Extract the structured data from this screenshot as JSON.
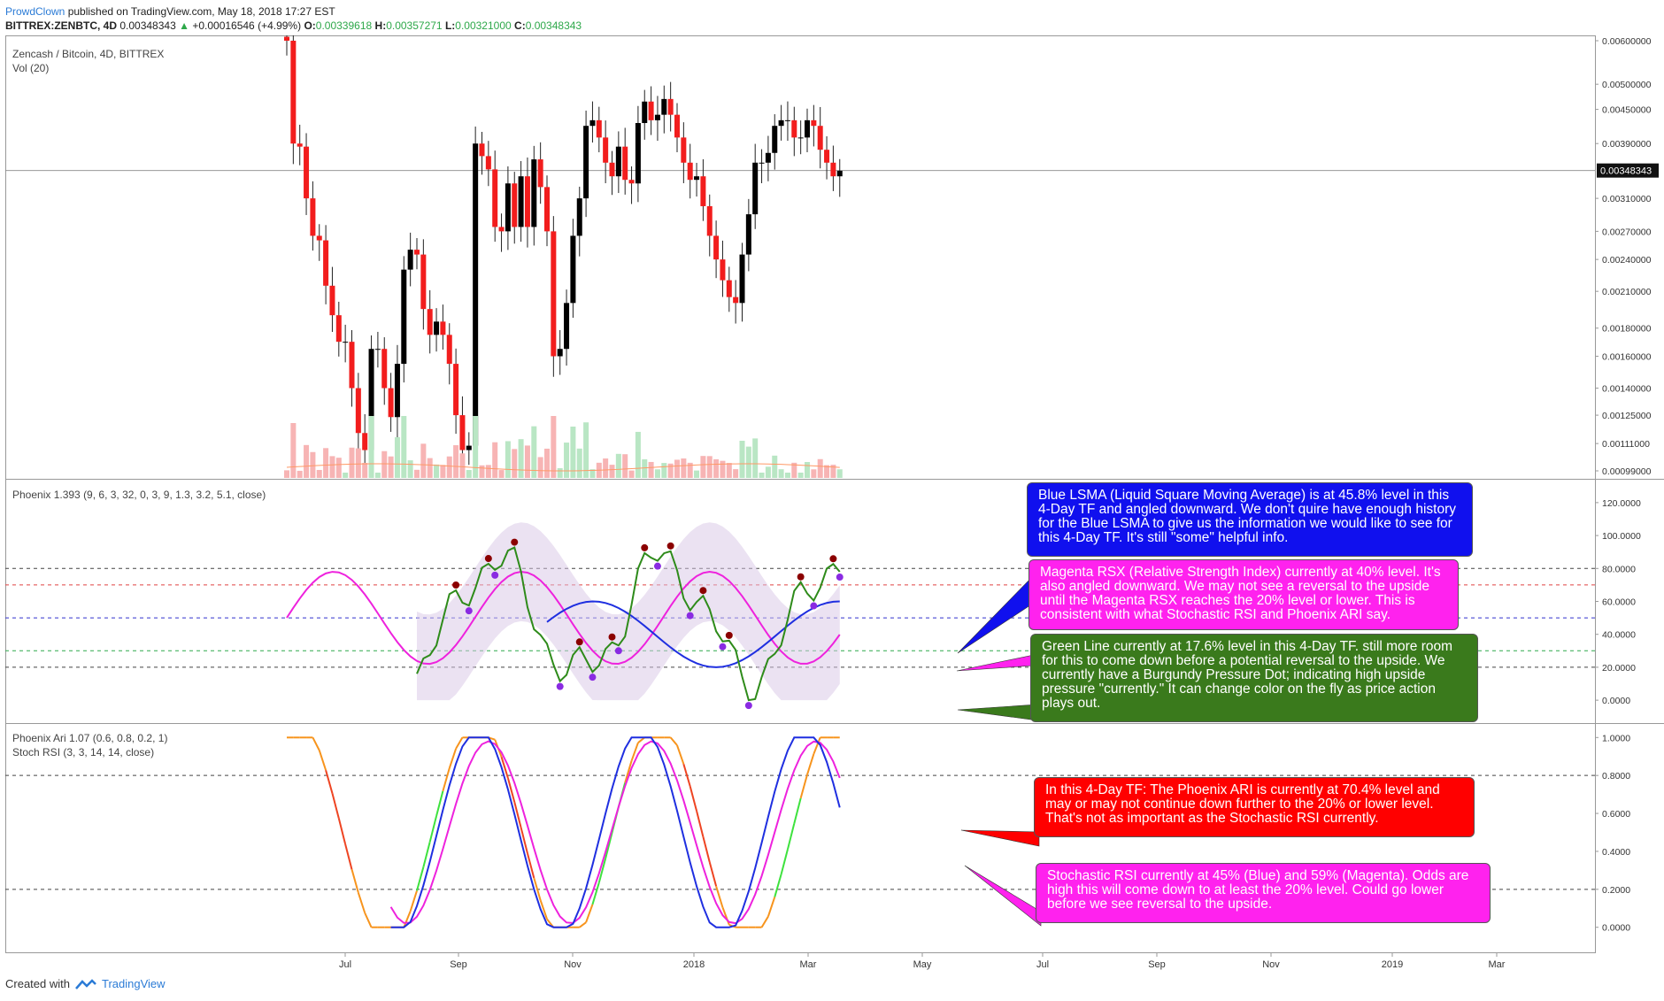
{
  "header": {
    "user": "ProwdClown",
    "published": "published on TradingView.com, May 18, 2018 17:27 EST",
    "symbol": "BITTREX:ZENBTC, 4D",
    "last": "0.00348343",
    "arrow": "▲",
    "change": "+0.00016546 (+4.99%)",
    "o_label": "O:",
    "o": "0.00339618",
    "h_label": "H:",
    "h": "0.00357271",
    "l_label": "L:",
    "l": "0.00321000",
    "c_label": "C:",
    "c": "0.00348343"
  },
  "panels": {
    "main_title": "Zencash / Bitcoin, 4D, BITTREX",
    "vol": "Vol (20)",
    "phoenix": "Phoenix 1.393 (9, 6, 3, 32, 0, 3, 9, 1.3, 3.2, 5.1, close)",
    "ari": "Phoenix Ari 1.07 (0.6, 0.8, 0.2, 1)",
    "stoch": "Stoch RSI (3, 3, 14, 14, close)"
  },
  "notes": {
    "blue": "Blue LSMA (Liquid Square Moving Average) is at 45.8% level in this 4-Day TF and angled downward.  We don't quire have enough history for the Blue LSMA to give us the information we would like to see for this 4-Day TF.  It's still \"some\" helpful info.",
    "magenta": "Magenta RSX (Relative Strength Index) currently at 40% level.  It's also angled downward.  We may not see a reversal to the upside until the Magenta RSX reaches the 20% level or lower.  This is consistent with what Stochastic RSI and Phoenix ARI say.",
    "green": "Green Line currently at 17.6% level in this 4-Day TF.  still more room for this to come down before a potential reversal to the upside.  We currently have a Burgundy Pressure Dot; indicating high upside pressure \"currently.\"  It can change color on the fly as price action plays out.",
    "red": "In this 4-Day TF:  The Phoenix ARI is currently at 70.4% level and may or may not continue down further to the 20% or lower level.  That's not as important as the Stochastic RSI currently.",
    "stoch": "Stochastic RSI currently at 45% (Blue) and 59% (Magenta).  Odds are high this will come down to at least the 20% level.  Could go lower before we see reversal to the upside."
  },
  "footer": {
    "created": "Created with",
    "brand": "TradingView"
  },
  "colors": {
    "up": "#000000",
    "down": "#f21d1d",
    "blue": "#1f2fe0",
    "magenta": "#ee22dd",
    "green": "#2e8b1a",
    "burgundy": "#8b0000",
    "purple": "#8a2be2",
    "note_blue": "#1010ee",
    "note_magenta": "#ff22ee",
    "note_green": "#3a7a1c",
    "note_red": "#ff0000"
  },
  "chart_data": [
    {
      "type": "candlestick",
      "title": "Zencash / Bitcoin, 4D, BITTREX",
      "x_ticks": [
        "Jul",
        "Sep",
        "Nov",
        "2018",
        "Mar",
        "May",
        "Jul",
        "Sep",
        "Nov",
        "2019",
        "Mar"
      ],
      "y_ticks": [
        "0.00600000",
        "0.00500000",
        "0.00450000",
        "0.00390000",
        "0.00348343",
        "0.00310000",
        "0.00270000",
        "0.00240000",
        "0.00210000",
        "0.00180000",
        "0.00160000",
        "0.00140000",
        "0.00125000",
        "0.00111000",
        "0.00099000"
      ],
      "last_price": "0.00348343",
      "close": [
        0.006,
        0.0039,
        0.00385,
        0.0031,
        0.00265,
        0.0026,
        0.00215,
        0.0019,
        0.0017,
        0.0017,
        0.0014,
        0.00116,
        0.00108,
        0.00165,
        0.00165,
        0.0014,
        0.00124,
        0.00155,
        0.0023,
        0.0025,
        0.00245,
        0.00195,
        0.00175,
        0.00185,
        0.00175,
        0.00155,
        0.00125,
        0.00108,
        0.0011,
        0.0039,
        0.0037,
        0.0035,
        0.00275,
        0.0027,
        0.0033,
        0.00275,
        0.0034,
        0.00275,
        0.00365,
        0.00325,
        0.0027,
        0.0016,
        0.00165,
        0.002,
        0.00265,
        0.0031,
        0.0042,
        0.0043,
        0.004,
        0.0036,
        0.0034,
        0.00385,
        0.00335,
        0.0033,
        0.00425,
        0.00465,
        0.0043,
        0.0044,
        0.0047,
        0.0044,
        0.004,
        0.0036,
        0.00335,
        0.0034,
        0.003,
        0.00265,
        0.0024,
        0.0022,
        0.00205,
        0.002,
        0.00245,
        0.0029,
        0.0036,
        0.0036,
        0.00375,
        0.0042,
        0.0043,
        0.0043,
        0.004,
        0.004,
        0.0043,
        0.0042,
        0.0038,
        0.0036,
        0.0034,
        0.00348
      ],
      "volume_note": "Vol (20)"
    },
    {
      "type": "line",
      "title": "Phoenix 1.393 (9, 6, 3, 32, 0, 3, 9, 1.3, 3.2, 5.1, close)",
      "y_ticks": [
        "120.0000",
        "100.0000",
        "80.0000",
        "60.0000",
        "40.0000",
        "20.0000",
        "0.0000"
      ],
      "ylim": [
        -8,
        128
      ],
      "levels": [
        80,
        70,
        50,
        30,
        20
      ],
      "series": [],
      "green_line_last": 17.6,
      "blue_lsma_last": 45.8,
      "magenta_rsx_last": 40
    },
    {
      "type": "line",
      "title": "Phoenix Ari 1.07 (0.6, 0.8, 0.2, 1) / Stoch RSI (3, 3, 14, 14, close)",
      "y_ticks": [
        "1.0000",
        "0.8000",
        "0.6000",
        "0.4000",
        "0.2000",
        "0.0000"
      ],
      "ylim": [
        -0.02,
        1.02
      ],
      "levels": [
        0.8,
        0.2
      ],
      "ari_last": 0.704,
      "stoch_k_last": 0.45,
      "stoch_d_last": 0.59
    }
  ]
}
